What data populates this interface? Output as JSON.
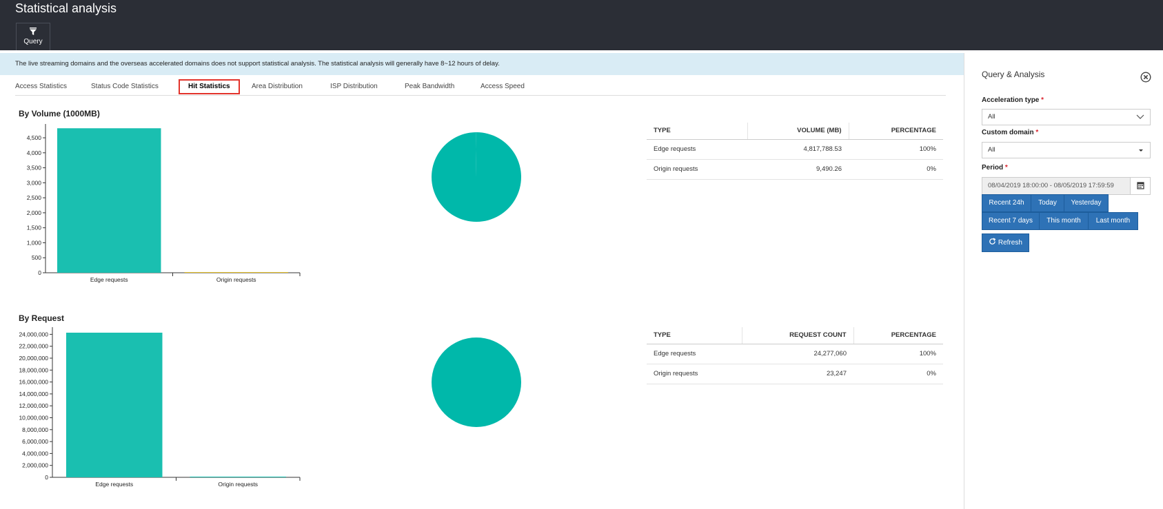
{
  "header": {
    "title": "Statistical analysis",
    "query_label": "Query"
  },
  "notice": "The live streaming domains and the overseas accelerated domains does not support statistical analysis. The statistical analysis will generally have 8~12 hours of delay.",
  "tabs": [
    {
      "label": "Access Statistics"
    },
    {
      "label": "Status Code Statistics"
    },
    {
      "label": "Hit Statistics"
    },
    {
      "label": "Area Distribution"
    },
    {
      "label": "ISP Distribution"
    },
    {
      "label": "Peak Bandwidth"
    },
    {
      "label": "Access Speed"
    }
  ],
  "active_tab": "Hit Statistics",
  "volume": {
    "title": "By Volume (1000MB)",
    "table": {
      "headers": [
        "TYPE",
        "VOLUME (MB)",
        "PERCENTAGE"
      ],
      "rows": [
        [
          "Edge requests",
          "4,817,788.53",
          "100%"
        ],
        [
          "Origin requests",
          "9,490.26",
          "0%"
        ]
      ]
    }
  },
  "request": {
    "title": "By Request",
    "table": {
      "headers": [
        "TYPE",
        "REQUEST COUNT",
        "PERCENTAGE"
      ],
      "rows": [
        [
          "Edge requests",
          "24,277,060",
          "100%"
        ],
        [
          "Origin requests",
          "23,247",
          "0%"
        ]
      ]
    }
  },
  "chart_data": [
    {
      "type": "bar",
      "categories": [
        "Edge requests",
        "Origin requests"
      ],
      "values": [
        4817.79,
        9.49
      ],
      "yticks": [
        "0",
        "500",
        "1,000",
        "1,500",
        "2,000",
        "2,500",
        "3,000",
        "3,500",
        "4,000",
        "4,500"
      ],
      "ylim": [
        0,
        4800
      ],
      "colors": [
        "#1abfb0",
        "#e8c32b"
      ]
    },
    {
      "type": "pie",
      "labels": [
        "Edge requests",
        "Origin requests"
      ],
      "values": [
        4817788.53,
        9490.26
      ],
      "colors": [
        "#00b8aa"
      ]
    },
    {
      "type": "bar",
      "categories": [
        "Edge requests",
        "Origin requests"
      ],
      "values": [
        24277060,
        23247
      ],
      "yticks": [
        "0",
        "2,000,000",
        "4,000,000",
        "6,000,000",
        "8,000,000",
        "10,000,000",
        "12,000,000",
        "14,000,000",
        "16,000,000",
        "18,000,000",
        "20,000,000",
        "22,000,000",
        "24,000,000"
      ],
      "ylim": [
        0,
        24277060
      ],
      "colors": [
        "#1abfb0",
        "#1abfb0"
      ]
    },
    {
      "type": "pie",
      "labels": [
        "Edge requests",
        "Origin requests"
      ],
      "values": [
        24277060,
        23247
      ],
      "colors": [
        "#00b8aa"
      ]
    }
  ],
  "panel": {
    "title": "Query & Analysis",
    "acceleration_type_label": "Acceleration type",
    "acceleration_type_value": "All",
    "custom_domain_label": "Custom domain",
    "custom_domain_value": "All",
    "period_label": "Period",
    "period_value": "08/04/2019 18:00:00 - 08/05/2019 17:59:59",
    "required_mark": "*",
    "quick_ranges": [
      "Recent 24h",
      "Today",
      "Yesterday",
      "Recent 7 days",
      "This month",
      "Last month"
    ],
    "refresh_label": "Refresh"
  }
}
